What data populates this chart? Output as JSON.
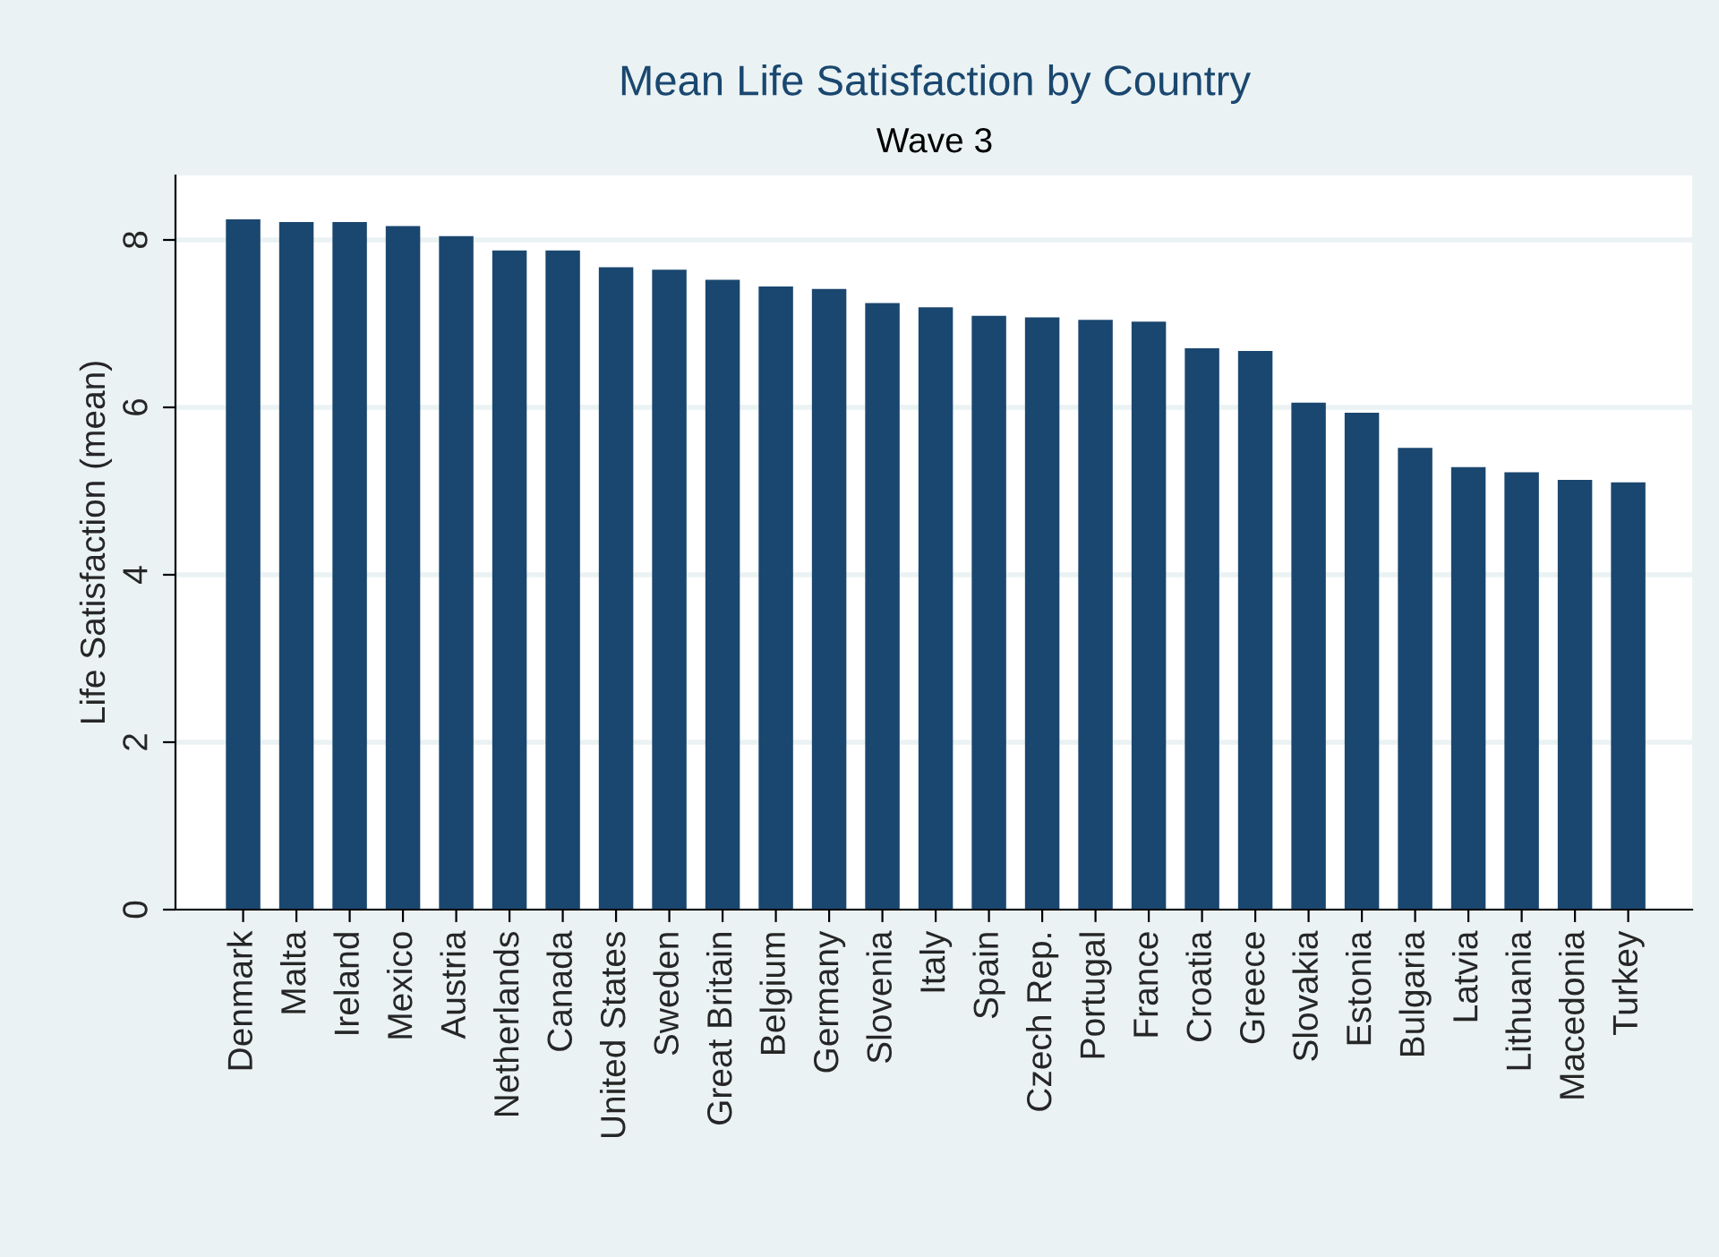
{
  "chart_data": {
    "type": "bar",
    "title": "Mean Life Satisfaction by Country",
    "subtitle": "Wave 3",
    "ylabel": "Life Satisfaction (mean)",
    "categories": [
      "Denmark",
      "Malta",
      "Ireland",
      "Mexico",
      "Austria",
      "Netherlands",
      "Canada",
      "United States",
      "Sweden",
      "Great Britain",
      "Belgium",
      "Germany",
      "Slovenia",
      "Italy",
      "Spain",
      "Czech Rep.",
      "Portugal",
      "France",
      "Croatia",
      "Greece",
      "Slovakia",
      "Estonia",
      "Bulgaria",
      "Latvia",
      "Lithuania",
      "Macedonia",
      "Turkey"
    ],
    "values": [
      8.23,
      8.2,
      8.2,
      8.15,
      8.03,
      7.86,
      7.86,
      7.66,
      7.63,
      7.51,
      7.43,
      7.4,
      7.23,
      7.18,
      7.08,
      7.06,
      7.03,
      7.01,
      6.69,
      6.66,
      6.04,
      5.92,
      5.5,
      5.27,
      5.21,
      5.12,
      5.09
    ],
    "color": "#1a476f",
    "ylim": [
      0,
      8.77
    ],
    "yticks": [
      0,
      2,
      4,
      6,
      8
    ],
    "grid": "y"
  }
}
